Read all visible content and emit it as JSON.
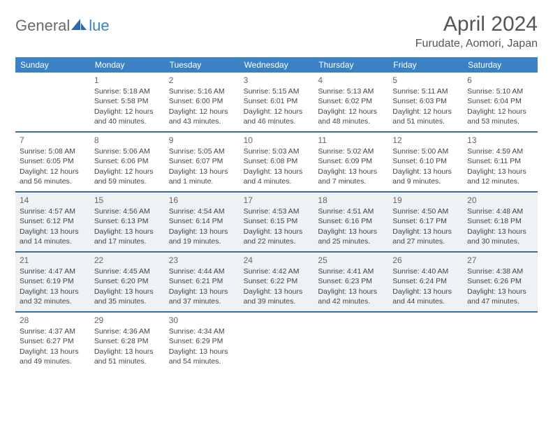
{
  "logo": {
    "part1": "General",
    "part2": "lue"
  },
  "title": "April 2024",
  "location": "Furudate, Aomori, Japan",
  "colors": {
    "header_bg": "#3b82c4",
    "header_text": "#ffffff",
    "rule": "#3b6fa0",
    "shaded_bg": "#eef2f5",
    "text": "#444444",
    "title_text": "#555555",
    "logo_gray": "#6a6a6a",
    "logo_blue": "#3b82c4"
  },
  "day_headers": [
    "Sunday",
    "Monday",
    "Tuesday",
    "Wednesday",
    "Thursday",
    "Friday",
    "Saturday"
  ],
  "weeks": [
    {
      "shaded": false,
      "days": [
        {
          "n": "",
          "sr": "",
          "ss": "",
          "dl": ""
        },
        {
          "n": "1",
          "sr": "Sunrise: 5:18 AM",
          "ss": "Sunset: 5:58 PM",
          "dl": "Daylight: 12 hours and 40 minutes."
        },
        {
          "n": "2",
          "sr": "Sunrise: 5:16 AM",
          "ss": "Sunset: 6:00 PM",
          "dl": "Daylight: 12 hours and 43 minutes."
        },
        {
          "n": "3",
          "sr": "Sunrise: 5:15 AM",
          "ss": "Sunset: 6:01 PM",
          "dl": "Daylight: 12 hours and 46 minutes."
        },
        {
          "n": "4",
          "sr": "Sunrise: 5:13 AM",
          "ss": "Sunset: 6:02 PM",
          "dl": "Daylight: 12 hours and 48 minutes."
        },
        {
          "n": "5",
          "sr": "Sunrise: 5:11 AM",
          "ss": "Sunset: 6:03 PM",
          "dl": "Daylight: 12 hours and 51 minutes."
        },
        {
          "n": "6",
          "sr": "Sunrise: 5:10 AM",
          "ss": "Sunset: 6:04 PM",
          "dl": "Daylight: 12 hours and 53 minutes."
        }
      ]
    },
    {
      "shaded": false,
      "days": [
        {
          "n": "7",
          "sr": "Sunrise: 5:08 AM",
          "ss": "Sunset: 6:05 PM",
          "dl": "Daylight: 12 hours and 56 minutes."
        },
        {
          "n": "8",
          "sr": "Sunrise: 5:06 AM",
          "ss": "Sunset: 6:06 PM",
          "dl": "Daylight: 12 hours and 59 minutes."
        },
        {
          "n": "9",
          "sr": "Sunrise: 5:05 AM",
          "ss": "Sunset: 6:07 PM",
          "dl": "Daylight: 13 hours and 1 minute."
        },
        {
          "n": "10",
          "sr": "Sunrise: 5:03 AM",
          "ss": "Sunset: 6:08 PM",
          "dl": "Daylight: 13 hours and 4 minutes."
        },
        {
          "n": "11",
          "sr": "Sunrise: 5:02 AM",
          "ss": "Sunset: 6:09 PM",
          "dl": "Daylight: 13 hours and 7 minutes."
        },
        {
          "n": "12",
          "sr": "Sunrise: 5:00 AM",
          "ss": "Sunset: 6:10 PM",
          "dl": "Daylight: 13 hours and 9 minutes."
        },
        {
          "n": "13",
          "sr": "Sunrise: 4:59 AM",
          "ss": "Sunset: 6:11 PM",
          "dl": "Daylight: 13 hours and 12 minutes."
        }
      ]
    },
    {
      "shaded": true,
      "days": [
        {
          "n": "14",
          "sr": "Sunrise: 4:57 AM",
          "ss": "Sunset: 6:12 PM",
          "dl": "Daylight: 13 hours and 14 minutes."
        },
        {
          "n": "15",
          "sr": "Sunrise: 4:56 AM",
          "ss": "Sunset: 6:13 PM",
          "dl": "Daylight: 13 hours and 17 minutes."
        },
        {
          "n": "16",
          "sr": "Sunrise: 4:54 AM",
          "ss": "Sunset: 6:14 PM",
          "dl": "Daylight: 13 hours and 19 minutes."
        },
        {
          "n": "17",
          "sr": "Sunrise: 4:53 AM",
          "ss": "Sunset: 6:15 PM",
          "dl": "Daylight: 13 hours and 22 minutes."
        },
        {
          "n": "18",
          "sr": "Sunrise: 4:51 AM",
          "ss": "Sunset: 6:16 PM",
          "dl": "Daylight: 13 hours and 25 minutes."
        },
        {
          "n": "19",
          "sr": "Sunrise: 4:50 AM",
          "ss": "Sunset: 6:17 PM",
          "dl": "Daylight: 13 hours and 27 minutes."
        },
        {
          "n": "20",
          "sr": "Sunrise: 4:48 AM",
          "ss": "Sunset: 6:18 PM",
          "dl": "Daylight: 13 hours and 30 minutes."
        }
      ]
    },
    {
      "shaded": true,
      "days": [
        {
          "n": "21",
          "sr": "Sunrise: 4:47 AM",
          "ss": "Sunset: 6:19 PM",
          "dl": "Daylight: 13 hours and 32 minutes."
        },
        {
          "n": "22",
          "sr": "Sunrise: 4:45 AM",
          "ss": "Sunset: 6:20 PM",
          "dl": "Daylight: 13 hours and 35 minutes."
        },
        {
          "n": "23",
          "sr": "Sunrise: 4:44 AM",
          "ss": "Sunset: 6:21 PM",
          "dl": "Daylight: 13 hours and 37 minutes."
        },
        {
          "n": "24",
          "sr": "Sunrise: 4:42 AM",
          "ss": "Sunset: 6:22 PM",
          "dl": "Daylight: 13 hours and 39 minutes."
        },
        {
          "n": "25",
          "sr": "Sunrise: 4:41 AM",
          "ss": "Sunset: 6:23 PM",
          "dl": "Daylight: 13 hours and 42 minutes."
        },
        {
          "n": "26",
          "sr": "Sunrise: 4:40 AM",
          "ss": "Sunset: 6:24 PM",
          "dl": "Daylight: 13 hours and 44 minutes."
        },
        {
          "n": "27",
          "sr": "Sunrise: 4:38 AM",
          "ss": "Sunset: 6:26 PM",
          "dl": "Daylight: 13 hours and 47 minutes."
        }
      ]
    },
    {
      "shaded": false,
      "days": [
        {
          "n": "28",
          "sr": "Sunrise: 4:37 AM",
          "ss": "Sunset: 6:27 PM",
          "dl": "Daylight: 13 hours and 49 minutes."
        },
        {
          "n": "29",
          "sr": "Sunrise: 4:36 AM",
          "ss": "Sunset: 6:28 PM",
          "dl": "Daylight: 13 hours and 51 minutes."
        },
        {
          "n": "30",
          "sr": "Sunrise: 4:34 AM",
          "ss": "Sunset: 6:29 PM",
          "dl": "Daylight: 13 hours and 54 minutes."
        },
        {
          "n": "",
          "sr": "",
          "ss": "",
          "dl": ""
        },
        {
          "n": "",
          "sr": "",
          "ss": "",
          "dl": ""
        },
        {
          "n": "",
          "sr": "",
          "ss": "",
          "dl": ""
        },
        {
          "n": "",
          "sr": "",
          "ss": "",
          "dl": ""
        }
      ]
    }
  ]
}
